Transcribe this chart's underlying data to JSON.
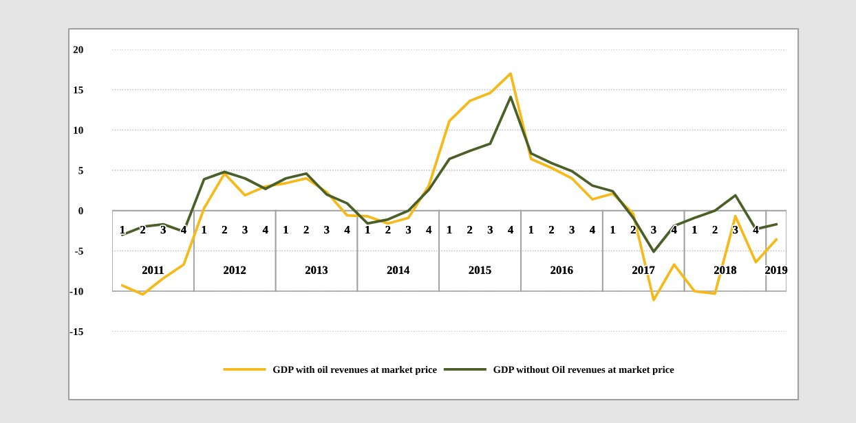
{
  "chart_data": {
    "type": "line",
    "categories": [
      "1",
      "2",
      "3",
      "4",
      "1",
      "2",
      "3",
      "4",
      "1",
      "2",
      "3",
      "4",
      "1",
      "2",
      "3",
      "4",
      "1",
      "2",
      "3",
      "4",
      "1",
      "2",
      "3",
      "4",
      "1",
      "2",
      "3",
      "4",
      "1",
      "2",
      "3",
      "4",
      null
    ],
    "annotations": [
      "2011",
      "2012",
      "2013",
      "2014",
      "2015",
      "2016",
      "2017",
      "2018",
      "2019"
    ],
    "series": [
      {
        "name": "GDP with oil revenues at market price",
        "color": "#f5b919",
        "values": [
          -9.3,
          -10.4,
          -8.4,
          -6.7,
          0.3,
          4.6,
          1.9,
          3.0,
          3.4,
          4.0,
          2.3,
          -0.6,
          -0.7,
          -1.6,
          -0.9,
          3.1,
          11.1,
          13.6,
          14.6,
          17.0,
          6.4,
          5.3,
          4.0,
          1.4,
          2.1,
          -0.4,
          -11.1,
          -6.7,
          -10.0,
          -10.3,
          -0.7,
          -6.4,
          -3.6
        ]
      },
      {
        "name": "GDP without Oil revenues at market price",
        "color": "#4a6028",
        "values": [
          -3.0,
          -2.0,
          -1.7,
          -2.6,
          3.9,
          4.8,
          4.0,
          2.7,
          4.0,
          4.6,
          2.0,
          0.9,
          -1.6,
          -1.1,
          0.0,
          2.6,
          6.4,
          7.4,
          8.3,
          14.1,
          7.1,
          5.9,
          4.9,
          3.1,
          2.4,
          -0.9,
          -5.1,
          -1.9,
          -0.9,
          0.0,
          1.9,
          -2.3,
          -1.7
        ]
      }
    ],
    "ylim": [
      -15,
      20
    ],
    "yticks": [
      -15,
      -10,
      -5,
      0,
      5,
      10,
      15,
      20
    ],
    "grid": "y",
    "legend": "bottom",
    "marker": "none",
    "line_style": "solid"
  }
}
